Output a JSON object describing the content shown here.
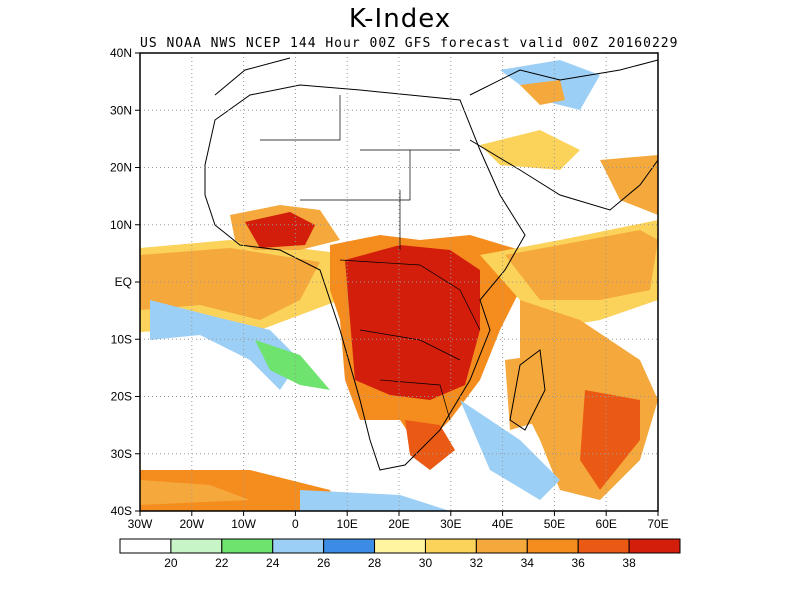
{
  "title": "K-Index",
  "subtitle": "US NOAA NWS NCEP 144 Hour 00Z GFS forecast valid 00Z 20160229",
  "latitude_labels": [
    "40N",
    "30N",
    "20N",
    "10N",
    "EQ",
    "10S",
    "20S",
    "30S",
    "40S"
  ],
  "longitude_labels": [
    "30W",
    "20W",
    "10W",
    "0",
    "10E",
    "20E",
    "30E",
    "40E",
    "50E",
    "60E",
    "70E"
  ],
  "colorbar": {
    "labels": [
      "20",
      "22",
      "24",
      "26",
      "28",
      "30",
      "32",
      "34",
      "36",
      "38"
    ],
    "colors": [
      "#ffffff",
      "#c8f5c8",
      "#6ee46e",
      "#9ccff5",
      "#3c8ce6",
      "#fff5a0",
      "#fbd25a",
      "#f5a83c",
      "#f58c1e",
      "#eb5a14",
      "#d21e0a"
    ]
  },
  "colors": {
    "ocean": "#ffffff",
    "border": "#000000",
    "grid": "#aaaaaa"
  }
}
